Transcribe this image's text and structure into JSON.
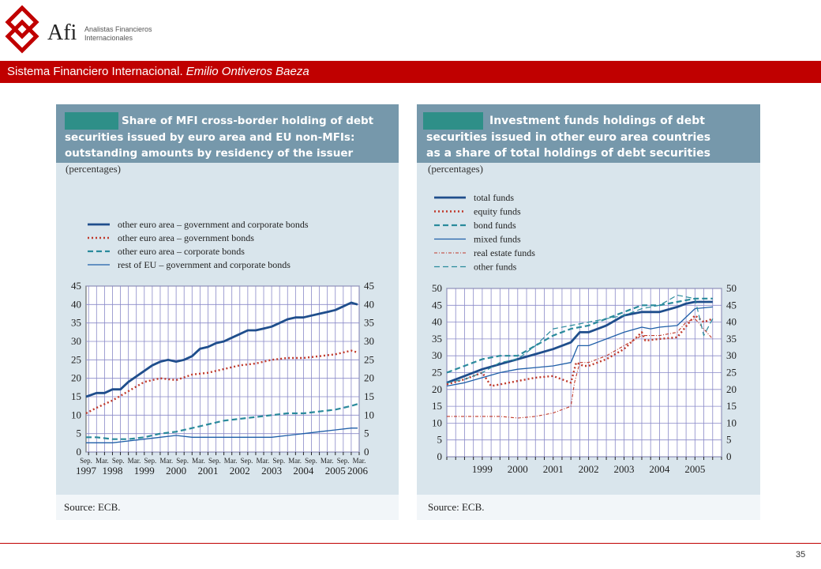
{
  "header": {
    "brand": "Afi",
    "brand_sub_1": "Analistas Financieros",
    "brand_sub_2": "Internacionales",
    "banner_main": "Sistema Financiero Internacional.",
    "banner_author": "Emilio Ontiveros Baeza",
    "brand_color": "#c00000"
  },
  "page_number": "35",
  "chart_data": [
    {
      "type": "line",
      "title_lines": [
        "Share of MFI cross-border holding of debt",
        "securities issued by euro area and EU non-MFIs:",
        "outstanding amounts by residency of the issuer"
      ],
      "subtitle": "(percentages)",
      "source": "Source: ECB.",
      "ylim": [
        0,
        45
      ],
      "yticks": [
        0,
        5,
        10,
        15,
        20,
        25,
        30,
        35,
        40,
        45
      ],
      "xlim": [
        1997.67,
        2006.25
      ],
      "x_tick_labels": [
        "Sep.",
        "Mar.",
        "Sep.",
        "Mar.",
        "Sep.",
        "Mar.",
        "Sep.",
        "Mar.",
        "Sep.",
        "Mar.",
        "Sep.",
        "Mar.",
        "Sep.",
        "Mar.",
        "Sep.",
        "Mar.",
        "Sep.",
        "Mar."
      ],
      "x_year_labels": [
        "1997",
        "1998",
        "1999",
        "2000",
        "2001",
        "2002",
        "2003",
        "2004",
        "2005",
        "2006"
      ],
      "x_year_positions": [
        1997.67,
        1998.5,
        1999.5,
        2000.5,
        2001.5,
        2002.5,
        2003.5,
        2004.5,
        2005.5,
        2006.2
      ],
      "grid": true,
      "legend_placement": "top",
      "series": [
        {
          "name": "other euro area – government and corporate bonds",
          "style": "solid-thick",
          "color": "#1f4e8c",
          "x": [
            1997.67,
            1998.0,
            1998.25,
            1998.5,
            1998.75,
            1999.0,
            1999.25,
            1999.5,
            1999.75,
            2000.0,
            2000.25,
            2000.5,
            2000.75,
            2001.0,
            2001.25,
            2001.5,
            2001.75,
            2002.0,
            2002.25,
            2002.5,
            2002.75,
            2003.0,
            2003.25,
            2003.5,
            2003.75,
            2004.0,
            2004.25,
            2004.5,
            2004.75,
            2005.0,
            2005.25,
            2005.5,
            2005.75,
            2006.0,
            2006.2
          ],
          "y": [
            15,
            16,
            16,
            17,
            17,
            19,
            20.5,
            22,
            23.5,
            24.5,
            25,
            24.5,
            25,
            26,
            28,
            28.5,
            29.5,
            30,
            31,
            32,
            33,
            33,
            33.5,
            34,
            35,
            36,
            36.5,
            36.5,
            37,
            37.5,
            38,
            38.5,
            39.5,
            40.5,
            40
          ]
        },
        {
          "name": "other euro area – government bonds",
          "style": "dotted",
          "color": "#c0392b",
          "x": [
            1997.67,
            1998.0,
            1998.5,
            1999.0,
            1999.5,
            2000.0,
            2000.5,
            2001.0,
            2001.5,
            2002.0,
            2002.5,
            2003.0,
            2003.5,
            2004.0,
            2004.5,
            2005.0,
            2005.5,
            2006.0,
            2006.2
          ],
          "y": [
            10.5,
            12,
            14,
            16.5,
            19,
            20,
            19.5,
            21,
            21.5,
            22.5,
            23.5,
            24,
            25,
            25.5,
            25.5,
            26,
            26.5,
            27.5,
            27
          ]
        },
        {
          "name": "other euro area – corporate bonds",
          "style": "dashed",
          "color": "#2a8a9c",
          "x": [
            1997.67,
            1998.0,
            1998.5,
            1999.0,
            1999.5,
            2000.0,
            2000.5,
            2001.0,
            2001.5,
            2002.0,
            2002.5,
            2003.0,
            2003.5,
            2004.0,
            2004.5,
            2005.0,
            2005.5,
            2006.0,
            2006.2
          ],
          "y": [
            4,
            4,
            3.5,
            3.5,
            4,
            5,
            5.5,
            6.5,
            7.5,
            8.5,
            9,
            9.5,
            10,
            10.5,
            10.5,
            11,
            11.5,
            12.5,
            13
          ]
        },
        {
          "name": "rest of EU – government and corporate bonds",
          "style": "solid-thin",
          "color": "#1f5fa8",
          "x": [
            1997.67,
            1998.0,
            1998.5,
            1999.0,
            1999.5,
            2000.0,
            2000.5,
            2001.0,
            2001.5,
            2002.0,
            2002.5,
            2003.0,
            2003.5,
            2004.0,
            2004.5,
            2005.0,
            2005.5,
            2006.0,
            2006.2
          ],
          "y": [
            2.5,
            2.5,
            2.5,
            3,
            3.5,
            4,
            4.5,
            4,
            4,
            4,
            4,
            4,
            4,
            4.5,
            5,
            5.5,
            6,
            6.5,
            6.5
          ]
        }
      ]
    },
    {
      "type": "line",
      "title_lines": [
        "Investment funds holdings of debt",
        "securities issued in other euro area countries",
        "as a share of total holdings of debt securities"
      ],
      "subtitle": "(percentages)",
      "source": "Source: ECB.",
      "ylim": [
        0,
        50
      ],
      "yticks": [
        0,
        5,
        10,
        15,
        20,
        25,
        30,
        35,
        40,
        45,
        50
      ],
      "xlim": [
        1998.0,
        2005.75
      ],
      "x_year_labels": [
        "1999",
        "2000",
        "2001",
        "2002",
        "2003",
        "2004",
        "2005"
      ],
      "x_year_positions": [
        1999.0,
        2000.0,
        2001.0,
        2002.0,
        2003.0,
        2004.0,
        2005.0
      ],
      "grid": true,
      "legend_placement": "top-left",
      "series": [
        {
          "name": "total funds",
          "style": "solid-thick",
          "color": "#1f4e8c",
          "x": [
            1998.0,
            1998.5,
            1999.0,
            1999.5,
            2000.0,
            2000.5,
            2001.0,
            2001.5,
            2001.75,
            2002.0,
            2002.5,
            2003.0,
            2003.5,
            2004.0,
            2004.5,
            2004.75,
            2005.0,
            2005.5
          ],
          "y": [
            22,
            24,
            26,
            27.5,
            29,
            30.5,
            32,
            34,
            37,
            37,
            39,
            42,
            43,
            43,
            44.5,
            45.5,
            46,
            46
          ]
        },
        {
          "name": "equity funds",
          "style": "dotted",
          "color": "#c0392b",
          "x": [
            1998.0,
            1998.5,
            1999.0,
            1999.25,
            1999.5,
            2000.0,
            2000.5,
            2001.0,
            2001.5,
            2001.65,
            2001.85,
            2002.0,
            2002.5,
            2003.0,
            2003.5,
            2003.6,
            2004.0,
            2004.5,
            2005.0,
            2005.25,
            2005.5
          ],
          "y": [
            21.5,
            23,
            25,
            21,
            21.5,
            22.5,
            23.5,
            24,
            22,
            28,
            27,
            27,
            29,
            32,
            37,
            34.5,
            35,
            35.5,
            42,
            40,
            41
          ]
        },
        {
          "name": "bond funds",
          "style": "dashed",
          "color": "#2a8a9c",
          "x": [
            1998.0,
            1998.5,
            1999.0,
            1999.5,
            2000.0,
            2000.5,
            2001.0,
            2001.5,
            2002.0,
            2002.5,
            2003.0,
            2003.5,
            2004.0,
            2004.5,
            2005.0,
            2005.5
          ],
          "y": [
            25,
            27,
            29,
            30,
            30,
            33,
            36,
            38,
            39,
            41,
            43,
            45,
            45,
            46,
            47,
            47
          ]
        },
        {
          "name": "mixed funds",
          "style": "solid-thin",
          "color": "#1f5fa8",
          "x": [
            1998.0,
            1998.5,
            1999.0,
            1999.5,
            2000.0,
            2000.5,
            2001.0,
            2001.5,
            2001.7,
            2002.0,
            2002.5,
            2003.0,
            2003.5,
            2003.75,
            2004.0,
            2004.5,
            2005.0,
            2005.5
          ],
          "y": [
            21,
            22,
            23.5,
            25,
            26,
            26.5,
            27,
            28,
            33,
            33,
            35,
            37,
            38.5,
            38,
            38.5,
            39,
            44,
            44.5
          ]
        },
        {
          "name": "real estate funds",
          "style": "dash-dot",
          "color": "#c0392b",
          "x": [
            1998.0,
            1998.5,
            1999.0,
            1999.5,
            2000.0,
            2000.5,
            2001.0,
            2001.5,
            2001.6,
            2001.75,
            2002.0,
            2002.5,
            2003.0,
            2003.5,
            2004.0,
            2004.5,
            2004.75,
            2005.0,
            2005.25,
            2005.5
          ],
          "y": [
            12,
            12,
            12,
            12,
            11.5,
            12,
            13,
            15,
            22,
            28,
            28,
            30,
            33,
            36,
            36,
            37,
            40,
            41,
            38,
            35
          ]
        },
        {
          "name": "other funds",
          "style": "dashed-thin",
          "color": "#2a8a9c",
          "x": [
            1998.0,
            1998.5,
            1999.0,
            1999.5,
            2000.0,
            2000.5,
            2001.0,
            2001.5,
            2002.0,
            2002.5,
            2003.0,
            2003.5,
            2004.0,
            2004.5,
            2005.0,
            2005.25,
            2005.5
          ],
          "y": [
            22,
            23,
            25,
            28,
            29,
            33,
            38,
            39,
            40,
            41,
            42,
            44,
            45,
            48,
            47,
            36,
            41
          ]
        }
      ]
    }
  ]
}
